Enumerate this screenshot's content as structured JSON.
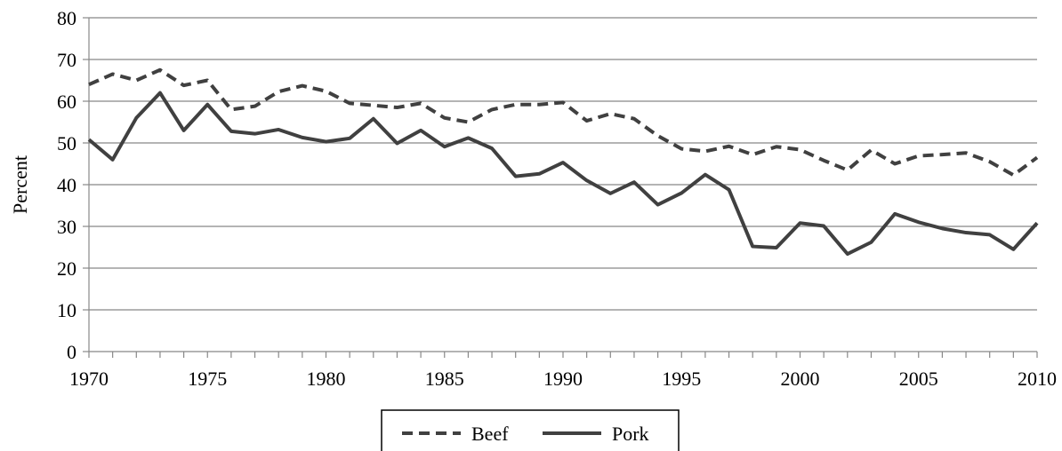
{
  "chart_data": {
    "type": "line",
    "title": "",
    "xlabel": "",
    "ylabel": "Percent",
    "xlim": [
      1970,
      2010
    ],
    "ylim": [
      0,
      80
    ],
    "yticks": [
      0,
      10,
      20,
      30,
      40,
      50,
      60,
      70,
      80
    ],
    "xticks": [
      1970,
      1975,
      1980,
      1985,
      1990,
      1995,
      2000,
      2005,
      2010
    ],
    "grid": "horizontal",
    "legend": "bottom-center",
    "x": [
      1970,
      1971,
      1972,
      1973,
      1974,
      1975,
      1976,
      1977,
      1978,
      1979,
      1980,
      1981,
      1982,
      1983,
      1984,
      1985,
      1986,
      1987,
      1988,
      1989,
      1990,
      1991,
      1992,
      1993,
      1994,
      1995,
      1996,
      1997,
      1998,
      1999,
      2000,
      2001,
      2002,
      2003,
      2004,
      2005,
      2006,
      2007,
      2008,
      2009,
      2010
    ],
    "series": [
      {
        "name": "Beef",
        "style": "dashed",
        "color": "#404040",
        "values": [
          64.0,
          66.5,
          65.0,
          67.5,
          63.8,
          65.0,
          58.0,
          58.8,
          62.3,
          63.7,
          62.4,
          59.5,
          59.0,
          58.5,
          59.5,
          56.0,
          55.0,
          58.0,
          59.2,
          59.2,
          59.7,
          55.3,
          57.0,
          55.8,
          51.7,
          48.6,
          48.0,
          49.2,
          47.2,
          49.1,
          48.4,
          45.8,
          43.5,
          48.3,
          45.0,
          46.9,
          47.2,
          47.6,
          45.5,
          42.3,
          46.5
        ]
      },
      {
        "name": "Pork",
        "style": "solid",
        "color": "#404040",
        "values": [
          50.8,
          46.0,
          56.0,
          62.0,
          53.0,
          59.2,
          52.8,
          52.2,
          53.2,
          51.3,
          50.3,
          51.1,
          55.8,
          49.9,
          53.0,
          49.1,
          51.2,
          48.7,
          42.0,
          42.6,
          45.3,
          41.0,
          37.9,
          40.6,
          35.2,
          38.0,
          42.4,
          38.8,
          25.2,
          24.9,
          30.8,
          30.1,
          23.4,
          26.2,
          33.0,
          31.0,
          29.5,
          28.5,
          28.0,
          24.5,
          30.8
        ]
      }
    ]
  }
}
